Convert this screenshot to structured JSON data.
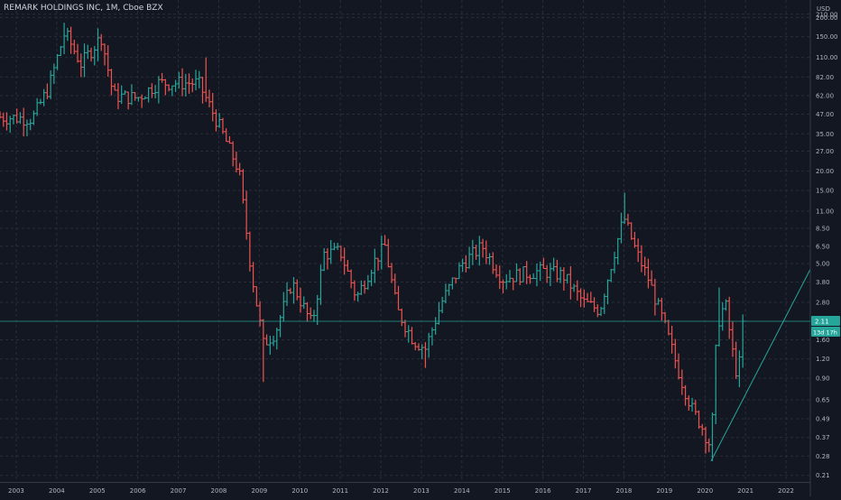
{
  "header": {
    "title": "REMARK HOLDINGS INC, 1M, Cboe BZX",
    "currency": "USD"
  },
  "price_tag": {
    "last": "2.11",
    "countdown": "13d 17h"
  },
  "colors": {
    "background": "#131722",
    "grid": "#2a2e39",
    "up": "#26a69a",
    "down": "#ef5350",
    "trendline": "#26a69a",
    "axis_text": "#b2b5be",
    "price_tag_bg": "#26a69a"
  },
  "chart_data": {
    "type": "ohlc",
    "title": "REMARK HOLDINGS INC, 1M, Cboe BZX",
    "y_scale": "log",
    "ylim": [
      0.19,
      260
    ],
    "y_ticks": [
      210,
      200,
      150,
      110,
      82,
      62,
      47,
      35,
      27,
      20,
      15,
      11,
      8.5,
      6.5,
      5,
      3.8,
      2.8,
      2.11,
      1.6,
      1.2,
      0.9,
      0.65,
      0.49,
      0.37,
      0.28,
      0.21
    ],
    "y_tick_labels": [
      "210.00",
      "200.00",
      "150.00",
      "110.00",
      "82.00",
      "62.00",
      "47.00",
      "35.00",
      "27.00",
      "20.00",
      "15.00",
      "11.00",
      "8.50",
      "6.50",
      "5.00",
      "3.80",
      "2.80",
      "2.11",
      "1.60",
      "1.20",
      "0.90",
      "0.65",
      "0.49",
      "0.37",
      "0.28",
      "0.21"
    ],
    "x_range": [
      2002.6,
      2022.6
    ],
    "x_ticks": [
      2003,
      2004,
      2005,
      2006,
      2007,
      2008,
      2009,
      2010,
      2011,
      2012,
      2013,
      2014,
      2015,
      2016,
      2017,
      2018,
      2019,
      2020,
      2021,
      2022
    ],
    "x_tick_labels": [
      "2003",
      "2004",
      "2005",
      "2006",
      "2007",
      "2008",
      "2009",
      "2010",
      "2011",
      "2012",
      "2013",
      "2014",
      "2015",
      "2016",
      "2017",
      "2018",
      "2019",
      "2020",
      "2021",
      "2022"
    ],
    "grid": true,
    "anchors": [
      [
        2002.6,
        45
      ],
      [
        2003.4,
        44
      ],
      [
        2003.8,
        70
      ],
      [
        2004.2,
        160
      ],
      [
        2004.6,
        100
      ],
      [
        2005.1,
        150
      ],
      [
        2005.4,
        62
      ],
      [
        2006.0,
        60
      ],
      [
        2006.5,
        75
      ],
      [
        2007.5,
        75
      ],
      [
        2008.0,
        40
      ],
      [
        2008.5,
        20
      ],
      [
        2008.8,
        4.5
      ],
      [
        2009.1,
        1.5
      ],
      [
        2009.4,
        1.8
      ],
      [
        2009.8,
        3.8
      ],
      [
        2010.3,
        2.0
      ],
      [
        2010.6,
        5.8
      ],
      [
        2011.0,
        6.0
      ],
      [
        2011.4,
        3.0
      ],
      [
        2011.8,
        5.0
      ],
      [
        2012.1,
        6.5
      ],
      [
        2012.4,
        2.5
      ],
      [
        2012.8,
        1.6
      ],
      [
        2013.1,
        1.4
      ],
      [
        2013.5,
        2.8
      ],
      [
        2014.0,
        5.0
      ],
      [
        2014.5,
        6.5
      ],
      [
        2015.0,
        4.0
      ],
      [
        2015.5,
        4.3
      ],
      [
        2016.0,
        4.5
      ],
      [
        2016.5,
        4.2
      ],
      [
        2017.0,
        2.8
      ],
      [
        2017.4,
        2.5
      ],
      [
        2017.8,
        6.5
      ],
      [
        2018.0,
        10.0
      ],
      [
        2018.3,
        6.0
      ],
      [
        2018.6,
        4.0
      ],
      [
        2019.0,
        2.0
      ],
      [
        2019.4,
        0.9
      ],
      [
        2019.7,
        0.55
      ],
      [
        2019.9,
        0.45
      ],
      [
        2020.15,
        0.32
      ],
      [
        2020.3,
        2.0
      ],
      [
        2020.5,
        2.8
      ],
      [
        2020.75,
        1.0
      ],
      [
        2020.9,
        1.2
      ],
      [
        2021.0,
        2.11
      ]
    ],
    "extremes": [
      [
        2004.2,
        185,
        "high"
      ],
      [
        2005.05,
        170,
        "high"
      ],
      [
        2007.7,
        110,
        "high"
      ],
      [
        2009.1,
        0.85,
        "low"
      ],
      [
        2013.1,
        1.05,
        "low"
      ],
      [
        2018.0,
        14.5,
        "high"
      ],
      [
        2020.15,
        0.26,
        "low"
      ],
      [
        2020.35,
        3.5,
        "high"
      ]
    ],
    "trendline": {
      "start": {
        "x": 2020.15,
        "y": 0.26
      },
      "end": {
        "x": 2022.6,
        "y": 4.6
      }
    },
    "last_price": 2.11
  }
}
